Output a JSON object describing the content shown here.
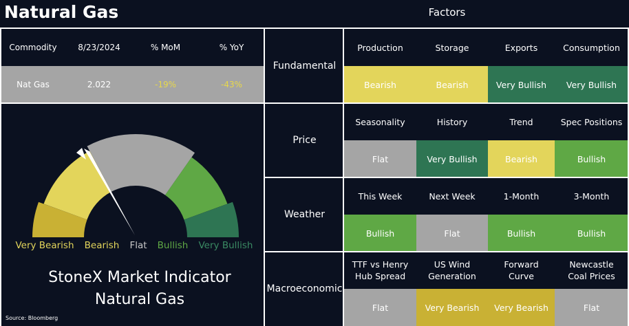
{
  "header": {
    "title": "Natural Gas",
    "factors_title": "Factors"
  },
  "commodity_table": {
    "columns": [
      "Commodity",
      "8/23/2024",
      "% MoM",
      "% YoY"
    ],
    "rows": [
      [
        "Nat Gas",
        "2.022",
        "-19%",
        "-43%"
      ]
    ]
  },
  "gauge": {
    "labels": [
      "Very Bearish",
      "Bearish",
      "Flat",
      "Bullish",
      "Very Bullish"
    ],
    "title": [
      "StoneX Market Indicator",
      "Natural Gas"
    ]
  },
  "source": "Source: Bloomberg",
  "factors": [
    {
      "group": "Fundamental",
      "items": [
        {
          "name": "Production",
          "signal": "Bearish"
        },
        {
          "name": "Storage",
          "signal": "Bearish"
        },
        {
          "name": "Exports",
          "signal": "Very Bullish"
        },
        {
          "name": "Consumption",
          "signal": "Very Bullish"
        }
      ]
    },
    {
      "group": "Price",
      "items": [
        {
          "name": "Seasonality",
          "signal": "Flat"
        },
        {
          "name": "History",
          "signal": "Very Bullish"
        },
        {
          "name": "Trend",
          "signal": "Bearish"
        },
        {
          "name": "Spec Positions",
          "signal": "Bullish"
        }
      ]
    },
    {
      "group": "Weather",
      "items": [
        {
          "name": "This Week",
          "signal": "Bullish"
        },
        {
          "name": "Next Week",
          "signal": "Flat"
        },
        {
          "name": "1-Month",
          "signal": "Bullish"
        },
        {
          "name": "3-Month",
          "signal": "Bullish"
        }
      ]
    },
    {
      "group": "Macroeconomic",
      "items": [
        {
          "name": "TTF vs Henry Hub Spread",
          "signal": "Flat"
        },
        {
          "name": "US Wind Generation",
          "signal": "Very Bearish"
        },
        {
          "name": "Forward Curve",
          "signal": "Very Bearish"
        },
        {
          "name": "Newcastle Coal Prices",
          "signal": "Flat"
        }
      ]
    }
  ]
}
